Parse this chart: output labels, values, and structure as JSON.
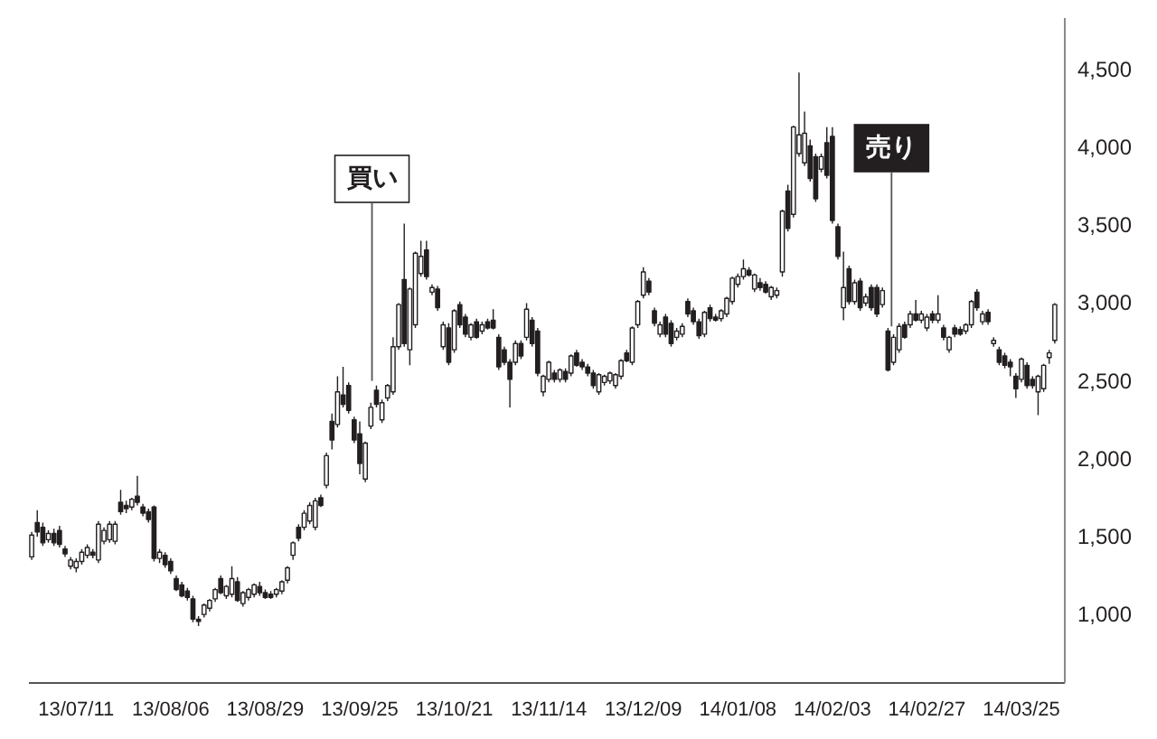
{
  "chart_data": {
    "type": "candlestick",
    "categories": [
      null,
      null,
      null,
      null,
      null,
      null,
      null,
      null,
      "13/07/11",
      null,
      null,
      null,
      null,
      null,
      null,
      null,
      null,
      null,
      null,
      null,
      null,
      null,
      null,
      null,
      null,
      "13/08/06",
      null,
      null,
      null,
      null,
      null,
      null,
      null,
      null,
      null,
      null,
      null,
      null,
      null,
      null,
      null,
      null,
      "13/08/29",
      null,
      null,
      null,
      null,
      null,
      null,
      null,
      null,
      null,
      null,
      null,
      null,
      null,
      null,
      null,
      null,
      "13/09/25",
      null,
      null,
      null,
      null,
      null,
      null,
      null,
      null,
      null,
      null,
      null,
      null,
      null,
      null,
      null,
      null,
      "13/10/21",
      null,
      null,
      null,
      null,
      null,
      null,
      null,
      null,
      null,
      null,
      null,
      null,
      null,
      null,
      null,
      null,
      "13/11/14",
      null,
      null,
      null,
      null,
      null,
      null,
      null,
      null,
      null,
      null,
      null,
      null,
      null,
      null,
      null,
      null,
      "13/12/09",
      null,
      null,
      null,
      null,
      null,
      null,
      null,
      null,
      null,
      null,
      null,
      null,
      null,
      null,
      null,
      null,
      "14/01/08",
      null,
      null,
      null,
      null,
      null,
      null,
      null,
      null,
      null,
      null,
      null,
      null,
      null,
      null,
      null,
      null,
      "14/02/03",
      null,
      null,
      null,
      null,
      null,
      null,
      null,
      null,
      null,
      null,
      null,
      null,
      null,
      null,
      null,
      null,
      "14/02/27",
      null,
      null,
      null,
      null,
      null,
      null,
      null,
      null,
      null,
      null,
      null,
      null,
      null,
      null,
      null,
      null,
      "14/03/25",
      null,
      null,
      null,
      null,
      null,
      null
    ],
    "ohlc": [
      [
        1370,
        1530,
        1350,
        1510
      ],
      [
        1590,
        1670,
        1500,
        1530
      ],
      [
        1560,
        1590,
        1440,
        1460
      ],
      [
        1480,
        1540,
        1460,
        1520
      ],
      [
        1520,
        1550,
        1440,
        1460
      ],
      [
        1540,
        1570,
        1430,
        1450
      ],
      [
        1420,
        1440,
        1370,
        1390
      ],
      [
        1310,
        1370,
        1290,
        1350
      ],
      [
        1300,
        1360,
        1270,
        1340
      ],
      [
        1340,
        1420,
        1320,
        1400
      ],
      [
        1380,
        1450,
        1360,
        1430
      ],
      [
        1400,
        1420,
        1360,
        1380
      ],
      [
        1350,
        1600,
        1330,
        1580
      ],
      [
        1470,
        1560,
        1450,
        1540
      ],
      [
        1480,
        1600,
        1460,
        1580
      ],
      [
        1470,
        1600,
        1450,
        1580
      ],
      [
        1720,
        1800,
        1640,
        1660
      ],
      [
        1700,
        1730,
        1650,
        1680
      ],
      [
        1690,
        1750,
        1670,
        1740
      ],
      [
        1760,
        1890,
        1700,
        1720
      ],
      [
        1690,
        1710,
        1630,
        1650
      ],
      [
        1660,
        1680,
        1590,
        1610
      ],
      [
        1690,
        1700,
        1340,
        1360
      ],
      [
        1360,
        1420,
        1330,
        1400
      ],
      [
        1380,
        1400,
        1300,
        1320
      ],
      [
        1340,
        1360,
        1260,
        1280
      ],
      [
        1230,
        1250,
        1150,
        1160
      ],
      [
        1190,
        1210,
        1110,
        1120
      ],
      [
        1150,
        1170,
        1090,
        1110
      ],
      [
        1100,
        1120,
        950,
        970
      ],
      [
        970,
        990,
        925,
        955
      ],
      [
        1000,
        1070,
        980,
        1060
      ],
      [
        1040,
        1100,
        1020,
        1090
      ],
      [
        1100,
        1170,
        1080,
        1160
      ],
      [
        1230,
        1250,
        1130,
        1140
      ],
      [
        1120,
        1190,
        1100,
        1180
      ],
      [
        1130,
        1310,
        1110,
        1230
      ],
      [
        1210,
        1240,
        1080,
        1090
      ],
      [
        1070,
        1150,
        1050,
        1140
      ],
      [
        1110,
        1170,
        1090,
        1160
      ],
      [
        1130,
        1200,
        1110,
        1190
      ],
      [
        1180,
        1210,
        1120,
        1140
      ],
      [
        1140,
        1160,
        1100,
        1110
      ],
      [
        1130,
        1150,
        1100,
        1110
      ],
      [
        1130,
        1170,
        1110,
        1160
      ],
      [
        1150,
        1220,
        1130,
        1210
      ],
      [
        1220,
        1310,
        1200,
        1300
      ],
      [
        1380,
        1470,
        1350,
        1460
      ],
      [
        1560,
        1580,
        1470,
        1490
      ],
      [
        1560,
        1670,
        1540,
        1650
      ],
      [
        1600,
        1720,
        1580,
        1700
      ],
      [
        1560,
        1750,
        1540,
        1730
      ],
      [
        1750,
        1770,
        1690,
        1700
      ],
      [
        1830,
        2040,
        1810,
        2020
      ],
      [
        2240,
        2290,
        2060,
        2120
      ],
      [
        2220,
        2530,
        2200,
        2430
      ],
      [
        2410,
        2590,
        2330,
        2350
      ],
      [
        2470,
        2490,
        2290,
        2310
      ],
      [
        2250,
        2270,
        2100,
        2120
      ],
      [
        2160,
        2240,
        1900,
        1970
      ],
      [
        1870,
        2110,
        1850,
        2100
      ],
      [
        2210,
        2360,
        2190,
        2330
      ],
      [
        2440,
        2470,
        2330,
        2350
      ],
      [
        2250,
        2380,
        2230,
        2360
      ],
      [
        2390,
        2480,
        2370,
        2470
      ],
      [
        2430,
        2780,
        2410,
        2720
      ],
      [
        2720,
        3000,
        2700,
        2990
      ],
      [
        3150,
        3510,
        2720,
        2740
      ],
      [
        2700,
        3100,
        2600,
        3090
      ],
      [
        2860,
        3330,
        2840,
        3320
      ],
      [
        3190,
        3400,
        3170,
        3300
      ],
      [
        3340,
        3400,
        3150,
        3170
      ],
      [
        3070,
        3120,
        3050,
        3100
      ],
      [
        3090,
        3110,
        2950,
        2970
      ],
      [
        2720,
        2880,
        2700,
        2860
      ],
      [
        2840,
        2870,
        2600,
        2620
      ],
      [
        2700,
        2960,
        2680,
        2950
      ],
      [
        2990,
        3010,
        2840,
        2860
      ],
      [
        2910,
        2930,
        2780,
        2800
      ],
      [
        2780,
        2870,
        2760,
        2860
      ],
      [
        2880,
        2900,
        2770,
        2780
      ],
      [
        2820,
        2880,
        2800,
        2860
      ],
      [
        2880,
        2900,
        2830,
        2840
      ],
      [
        2890,
        2960,
        2830,
        2840
      ],
      [
        2780,
        2800,
        2570,
        2590
      ],
      [
        2700,
        2720,
        2600,
        2620
      ],
      [
        2620,
        2640,
        2330,
        2510
      ],
      [
        2620,
        2760,
        2600,
        2740
      ],
      [
        2740,
        2760,
        2640,
        2660
      ],
      [
        2780,
        3000,
        2760,
        2960
      ],
      [
        2890,
        2910,
        2720,
        2740
      ],
      [
        2820,
        2840,
        2530,
        2550
      ],
      [
        2430,
        2540,
        2400,
        2530
      ],
      [
        2510,
        2630,
        2490,
        2620
      ],
      [
        2550,
        2570,
        2490,
        2510
      ],
      [
        2510,
        2580,
        2490,
        2570
      ],
      [
        2560,
        2580,
        2490,
        2510
      ],
      [
        2550,
        2670,
        2530,
        2660
      ],
      [
        2680,
        2700,
        2590,
        2600
      ],
      [
        2620,
        2640,
        2570,
        2590
      ],
      [
        2590,
        2610,
        2530,
        2550
      ],
      [
        2550,
        2570,
        2450,
        2470
      ],
      [
        2430,
        2550,
        2410,
        2540
      ],
      [
        2490,
        2540,
        2470,
        2530
      ],
      [
        2500,
        2560,
        2480,
        2550
      ],
      [
        2470,
        2550,
        2450,
        2540
      ],
      [
        2530,
        2640,
        2510,
        2630
      ],
      [
        2680,
        2700,
        2620,
        2630
      ],
      [
        2620,
        2850,
        2600,
        2840
      ],
      [
        2860,
        3020,
        2840,
        3010
      ],
      [
        3050,
        3230,
        3030,
        3200
      ],
      [
        3140,
        3160,
        3050,
        3070
      ],
      [
        2950,
        2970,
        2850,
        2870
      ],
      [
        2800,
        2880,
        2780,
        2860
      ],
      [
        2910,
        2930,
        2780,
        2800
      ],
      [
        2870,
        2890,
        2720,
        2740
      ],
      [
        2780,
        2840,
        2760,
        2820
      ],
      [
        2800,
        2870,
        2780,
        2850
      ],
      [
        3010,
        3030,
        2910,
        2930
      ],
      [
        2950,
        2970,
        2860,
        2880
      ],
      [
        2880,
        2900,
        2770,
        2790
      ],
      [
        2800,
        2950,
        2780,
        2940
      ],
      [
        2970,
        2990,
        2880,
        2900
      ],
      [
        2910,
        2930,
        2880,
        2890
      ],
      [
        2900,
        2960,
        2880,
        2950
      ],
      [
        2930,
        3040,
        2910,
        3030
      ],
      [
        3010,
        3170,
        2990,
        3160
      ],
      [
        3120,
        3190,
        3100,
        3170
      ],
      [
        3170,
        3280,
        3150,
        3220
      ],
      [
        3210,
        3230,
        3170,
        3180
      ],
      [
        3090,
        3190,
        3070,
        3180
      ],
      [
        3130,
        3160,
        3080,
        3100
      ],
      [
        3120,
        3140,
        3060,
        3070
      ],
      [
        3040,
        3110,
        3020,
        3100
      ],
      [
        3050,
        3100,
        3030,
        3080
      ],
      [
        3200,
        3600,
        3170,
        3590
      ],
      [
        3720,
        3760,
        3460,
        3480
      ],
      [
        3570,
        4140,
        3550,
        4130
      ],
      [
        3960,
        4480,
        3940,
        4080
      ],
      [
        3900,
        4230,
        3880,
        4090
      ],
      [
        4010,
        4050,
        3780,
        3800
      ],
      [
        3940,
        3960,
        3650,
        3670
      ],
      [
        3860,
        3960,
        3840,
        3940
      ],
      [
        4030,
        4130,
        3800,
        3820
      ],
      [
        4070,
        4130,
        3510,
        3530
      ],
      [
        3490,
        3510,
        3280,
        3300
      ],
      [
        2970,
        3330,
        2890,
        3100
      ],
      [
        3220,
        3240,
        2990,
        3010
      ],
      [
        3010,
        3150,
        2990,
        3130
      ],
      [
        3140,
        3160,
        2950,
        2970
      ],
      [
        3000,
        3060,
        2980,
        3040
      ],
      [
        3100,
        3120,
        2950,
        2970
      ],
      [
        3100,
        3120,
        2910,
        2930
      ],
      [
        2990,
        3100,
        2970,
        3080
      ],
      [
        2820,
        2840,
        2560,
        2570
      ],
      [
        2620,
        2800,
        2600,
        2780
      ],
      [
        2700,
        2870,
        2680,
        2850
      ],
      [
        2860,
        2880,
        2770,
        2780
      ],
      [
        2860,
        2950,
        2840,
        2930
      ],
      [
        2930,
        3020,
        2880,
        2890
      ],
      [
        2890,
        2950,
        2870,
        2930
      ],
      [
        2840,
        2930,
        2820,
        2910
      ],
      [
        2930,
        2950,
        2870,
        2890
      ],
      [
        2890,
        3050,
        2870,
        2930
      ],
      [
        2840,
        2860,
        2760,
        2780
      ],
      [
        2700,
        2790,
        2680,
        2780
      ],
      [
        2840,
        2860,
        2780,
        2800
      ],
      [
        2830,
        2850,
        2790,
        2800
      ],
      [
        2820,
        2870,
        2800,
        2860
      ],
      [
        2860,
        3020,
        2840,
        3010
      ],
      [
        3070,
        3090,
        2950,
        2970
      ],
      [
        2880,
        2950,
        2860,
        2930
      ],
      [
        2940,
        2960,
        2860,
        2880
      ],
      [
        2740,
        2780,
        2720,
        2760
      ],
      [
        2700,
        2720,
        2600,
        2620
      ],
      [
        2660,
        2680,
        2580,
        2600
      ],
      [
        2620,
        2640,
        2530,
        2590
      ],
      [
        2530,
        2550,
        2390,
        2450
      ],
      [
        2510,
        2650,
        2490,
        2640
      ],
      [
        2600,
        2620,
        2450,
        2470
      ],
      [
        2510,
        2530,
        2450,
        2470
      ],
      [
        2430,
        2540,
        2280,
        2530
      ],
      [
        2450,
        2610,
        2430,
        2600
      ],
      [
        2650,
        2700,
        2610,
        2680
      ],
      [
        2760,
        3000,
        2740,
        2990
      ]
    ],
    "color": "#231f20",
    "ylim": [
      560,
      4830
    ],
    "yticks": [
      {
        "value": 1000,
        "label": "1,000"
      },
      {
        "value": 1500,
        "label": "1,500"
      },
      {
        "value": 2000,
        "label": "2,000"
      },
      {
        "value": 2500,
        "label": "2,500"
      },
      {
        "value": 3000,
        "label": "3,000"
      },
      {
        "value": 3500,
        "label": "3,500"
      },
      {
        "value": 4000,
        "label": "4,000"
      },
      {
        "value": 4500,
        "label": "4,500"
      }
    ],
    "annotations": [
      {
        "text": "買い",
        "y": 2500
      },
      {
        "text": "売り",
        "y": 2850
      }
    ]
  }
}
